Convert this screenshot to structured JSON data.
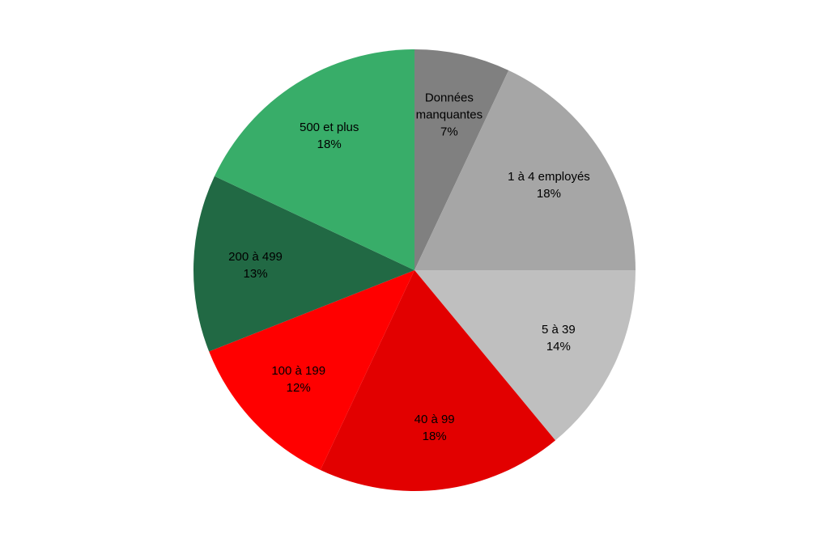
{
  "chart_data": {
    "type": "pie",
    "categories": [
      "Données manquantes",
      "1 à 4 employés",
      "5 à 39",
      "40 à 99",
      "100 à 199",
      "200 à 499",
      "500 et plus"
    ],
    "values": [
      7,
      18,
      14,
      18,
      12,
      13,
      18
    ],
    "value_labels": [
      "7%",
      "18%",
      "14%",
      "18%",
      "12%",
      "13%",
      "18%"
    ],
    "colors": [
      "#808080",
      "#a6a6a6",
      "#bfbfbf",
      "#e20000",
      "#ff0000",
      "#216944",
      "#38ad69"
    ]
  }
}
